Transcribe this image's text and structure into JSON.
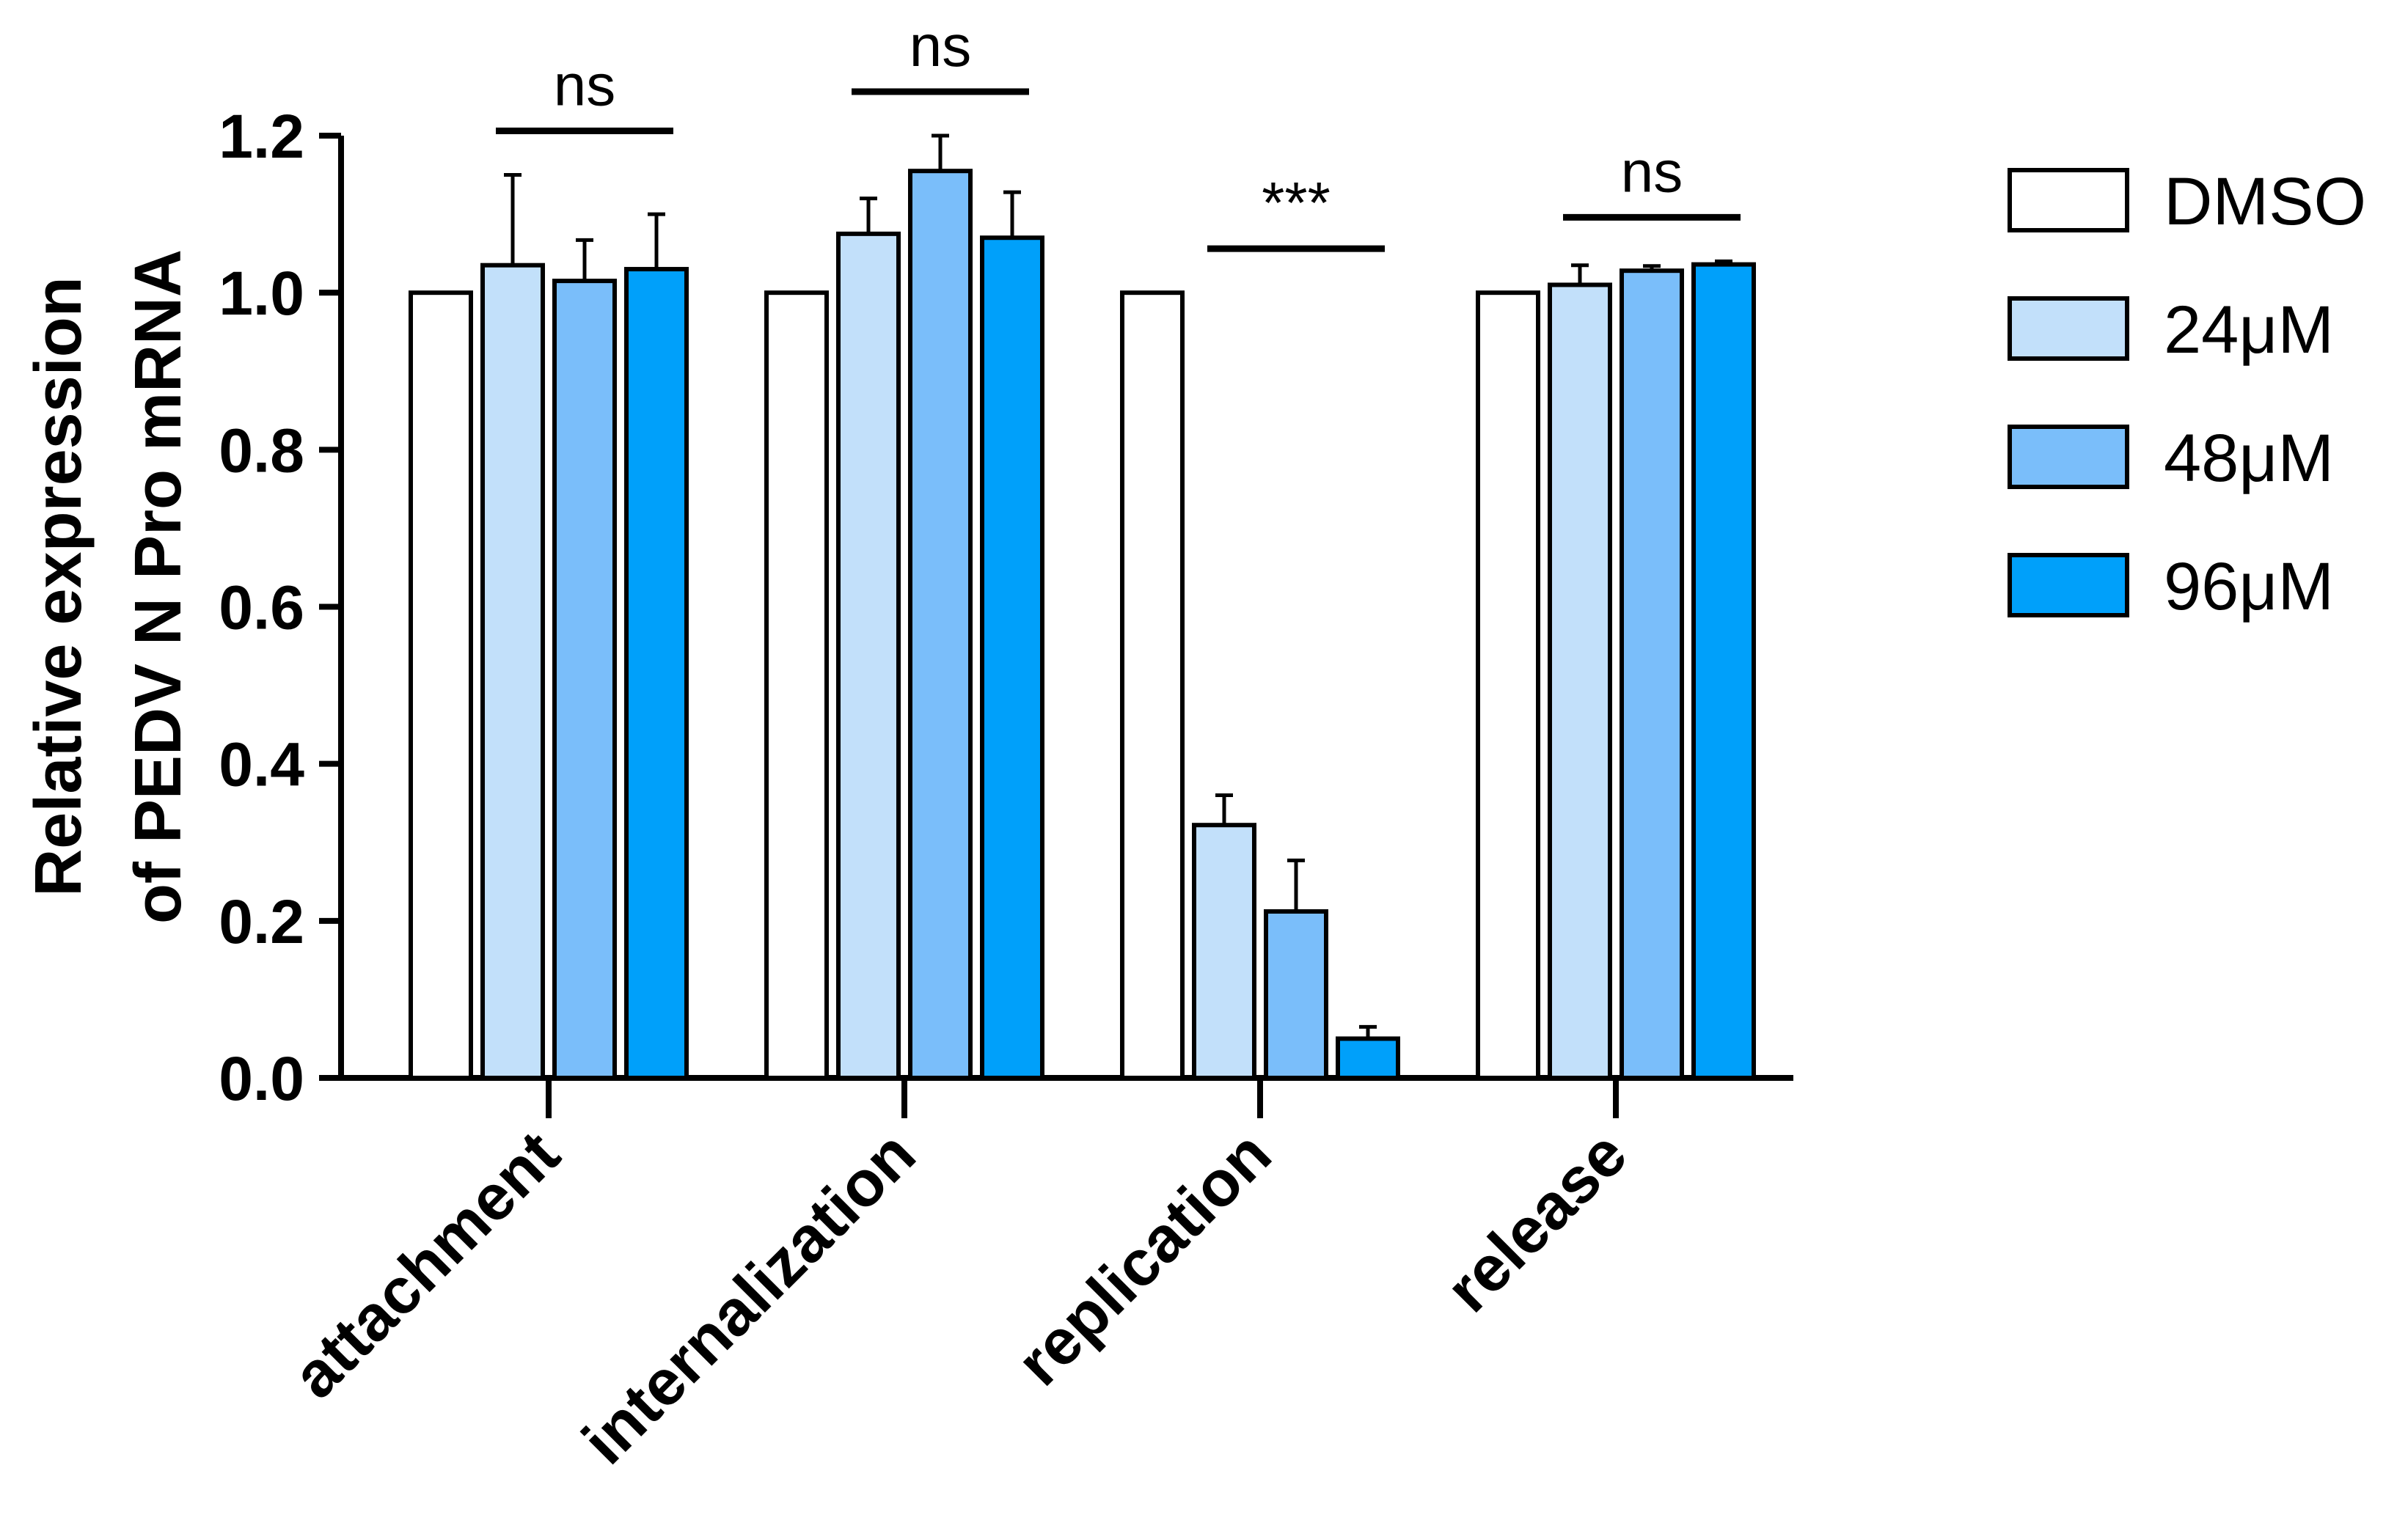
{
  "chart_data": {
    "type": "bar",
    "categories": [
      "attachment",
      "internalization",
      "replication",
      "release"
    ],
    "series": [
      {
        "name": "DMSO",
        "color": "#FFFFFF",
        "values": [
          1.0,
          1.0,
          1.0,
          1.0
        ],
        "errors": [
          0,
          0,
          0,
          0
        ]
      },
      {
        "name": "24μM",
        "color": "#C2E0FA",
        "values": [
          1.035,
          1.075,
          0.322,
          1.01
        ],
        "errors": [
          0.115,
          0.045,
          0.038,
          0.025
        ]
      },
      {
        "name": "48μM",
        "color": "#7ABEFA",
        "values": [
          1.015,
          1.155,
          0.212,
          1.028
        ],
        "errors": [
          0.052,
          0.045,
          0.065,
          0.006
        ]
      },
      {
        "name": "96μM",
        "color": "#00A0FA",
        "values": [
          1.03,
          1.07,
          0.05,
          1.036
        ],
        "errors": [
          0.07,
          0.058,
          0.015,
          0.004
        ]
      }
    ],
    "significance": [
      "ns",
      "ns",
      "***",
      "ns"
    ],
    "ylabel_line1": "Relative expression",
    "ylabel_line2": "of PEDV N Pro mRNA",
    "xlabel": "",
    "ylim": [
      0,
      1.2
    ],
    "yticks": [
      "0.0",
      "0.2",
      "0.4",
      "0.6",
      "0.8",
      "1.0",
      "1.2"
    ],
    "legend_position": "right",
    "grid": false
  }
}
